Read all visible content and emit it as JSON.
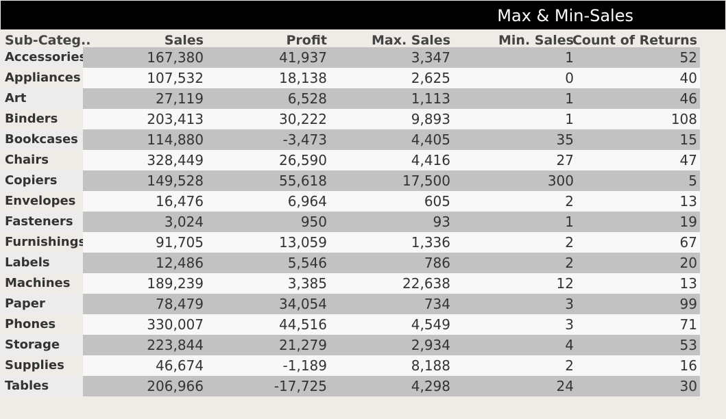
{
  "title": "Max & Min-Sales",
  "chart_data": {
    "type": "table",
    "title": "Max & Min-Sales",
    "columns": [
      "Sub-Categ..",
      "Sales",
      "Profit",
      "Max. Sales",
      "Min. Sales",
      "Count of Returns"
    ],
    "rows": [
      {
        "label": "Accessories",
        "sales": "167,380",
        "profit": "41,937",
        "max_sales": "3,347",
        "min_sales": "1",
        "returns": "52"
      },
      {
        "label": "Appliances",
        "sales": "107,532",
        "profit": "18,138",
        "max_sales": "2,625",
        "min_sales": "0",
        "returns": "40"
      },
      {
        "label": "Art",
        "sales": "27,119",
        "profit": "6,528",
        "max_sales": "1,113",
        "min_sales": "1",
        "returns": "46"
      },
      {
        "label": "Binders",
        "sales": "203,413",
        "profit": "30,222",
        "max_sales": "9,893",
        "min_sales": "1",
        "returns": "108"
      },
      {
        "label": "Bookcases",
        "sales": "114,880",
        "profit": "-3,473",
        "max_sales": "4,405",
        "min_sales": "35",
        "returns": "15"
      },
      {
        "label": "Chairs",
        "sales": "328,449",
        "profit": "26,590",
        "max_sales": "4,416",
        "min_sales": "27",
        "returns": "47"
      },
      {
        "label": "Copiers",
        "sales": "149,528",
        "profit": "55,618",
        "max_sales": "17,500",
        "min_sales": "300",
        "returns": "5"
      },
      {
        "label": "Envelopes",
        "sales": "16,476",
        "profit": "6,964",
        "max_sales": "605",
        "min_sales": "2",
        "returns": "13"
      },
      {
        "label": "Fasteners",
        "sales": "3,024",
        "profit": "950",
        "max_sales": "93",
        "min_sales": "1",
        "returns": "19"
      },
      {
        "label": "Furnishings",
        "sales": "91,705",
        "profit": "13,059",
        "max_sales": "1,336",
        "min_sales": "2",
        "returns": "67"
      },
      {
        "label": "Labels",
        "sales": "12,486",
        "profit": "5,546",
        "max_sales": "786",
        "min_sales": "2",
        "returns": "20"
      },
      {
        "label": "Machines",
        "sales": "189,239",
        "profit": "3,385",
        "max_sales": "22,638",
        "min_sales": "12",
        "returns": "13"
      },
      {
        "label": "Paper",
        "sales": "78,479",
        "profit": "34,054",
        "max_sales": "734",
        "min_sales": "3",
        "returns": "99"
      },
      {
        "label": "Phones",
        "sales": "330,007",
        "profit": "44,516",
        "max_sales": "4,549",
        "min_sales": "3",
        "returns": "71"
      },
      {
        "label": "Storage",
        "sales": "223,844",
        "profit": "21,279",
        "max_sales": "2,934",
        "min_sales": "4",
        "returns": "53"
      },
      {
        "label": "Supplies",
        "sales": "46,674",
        "profit": "-1,189",
        "max_sales": "8,188",
        "min_sales": "2",
        "returns": "16"
      },
      {
        "label": "Tables",
        "sales": "206,966",
        "profit": "-17,725",
        "max_sales": "4,298",
        "min_sales": "24",
        "returns": "30"
      }
    ]
  },
  "colors": {
    "title_bar": "#000000",
    "title_text": "#ffffff",
    "band_dark": "#c2c2c2",
    "band_light": "#f8f8f8",
    "background": "#efebe7"
  }
}
